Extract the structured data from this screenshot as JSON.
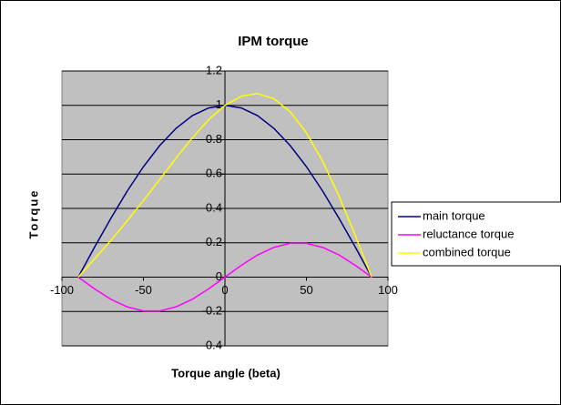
{
  "chart_data": {
    "type": "line",
    "title": "IPM torque",
    "x_label": "Torque angle (beta)",
    "y_label": "Torque",
    "x": [
      -90,
      -80,
      -70,
      -60,
      -50,
      -40,
      -30,
      -20,
      -10,
      0,
      10,
      20,
      30,
      40,
      50,
      60,
      70,
      80,
      90
    ],
    "series": [
      {
        "name": "main torque",
        "color": "#000080",
        "values": [
          0,
          0.174,
          0.342,
          0.5,
          0.643,
          0.766,
          0.866,
          0.94,
          0.985,
          1,
          0.985,
          0.94,
          0.866,
          0.766,
          0.643,
          0.5,
          0.342,
          0.174,
          0
        ]
      },
      {
        "name": "reluctance torque",
        "color": "#ff00ff",
        "values": [
          0,
          -0.068,
          -0.129,
          -0.173,
          -0.197,
          -0.197,
          -0.173,
          -0.129,
          -0.068,
          0,
          0.068,
          0.129,
          0.173,
          0.197,
          0.197,
          0.173,
          0.129,
          0.068,
          0
        ]
      },
      {
        "name": "combined torque",
        "color": "#ffff00",
        "values": [
          0,
          0.106,
          0.213,
          0.327,
          0.446,
          0.569,
          0.693,
          0.811,
          0.917,
          1,
          1.053,
          1.069,
          1.039,
          0.963,
          0.84,
          0.673,
          0.471,
          0.242,
          0
        ]
      }
    ],
    "xlim": [
      -100,
      100
    ],
    "xticks": [
      -100,
      -50,
      0,
      50,
      100
    ],
    "ylim": [
      -0.4,
      1.2
    ],
    "yticks": [
      -0.4,
      -0.2,
      0,
      0.2,
      0.4,
      0.6,
      0.8,
      1,
      1.2
    ],
    "grid": true,
    "legend": "right"
  }
}
